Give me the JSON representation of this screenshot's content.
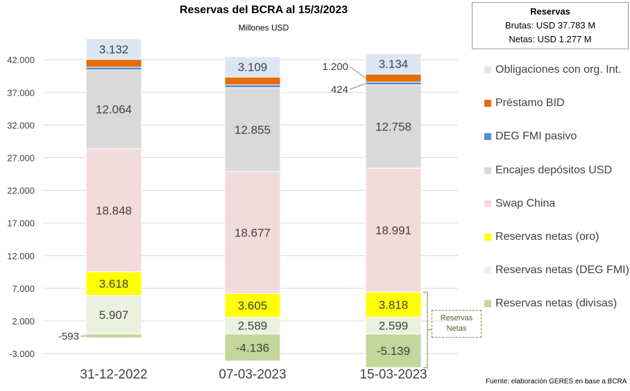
{
  "chart_data": {
    "type": "bar",
    "stacked": true,
    "title": "Reservas del BCRA al 15/3/2023",
    "subtitle": "Millones USD",
    "categories": [
      "31-12-2022",
      "07-03-2023",
      "15-03-2023"
    ],
    "ylim": [
      -3000,
      45000
    ],
    "yticks": [
      "42.000",
      "37.000",
      "32.000",
      "27.000",
      "22.000",
      "17.000",
      "12.000",
      "7.000",
      "2.000",
      "-3.000"
    ],
    "ytick_values": [
      42000,
      37000,
      32000,
      27000,
      22000,
      17000,
      12000,
      7000,
      2000,
      -3000
    ],
    "grid": true,
    "legend_position": "right",
    "series": [
      {
        "name": "Reservas netas (divisas)",
        "color": "#c3d69b",
        "values": [
          -593,
          -4136,
          -5139
        ],
        "labels": [
          "-593",
          "-4.136",
          "-5.139"
        ]
      },
      {
        "name": "Reservas netas (DEG FMI)",
        "color": "#ebf1de",
        "values": [
          5907,
          2589,
          2599
        ],
        "labels": [
          "5.907",
          "2.589",
          "2.599"
        ]
      },
      {
        "name": "Reservas netas (oro)",
        "color": "#ffff00",
        "values": [
          3618,
          3605,
          3818
        ],
        "labels": [
          "3.618",
          "3.605",
          "3.818"
        ]
      },
      {
        "name": "Swap China",
        "color": "#f2dcdb",
        "values": [
          18848,
          18677,
          18991
        ],
        "labels": [
          "18.848",
          "18.677",
          "18.991"
        ]
      },
      {
        "name": "Encajes depósitos USD",
        "color": "#d9d9d9",
        "values": [
          12064,
          12855,
          12758
        ],
        "labels": [
          "12.064",
          "12.855",
          "12.758"
        ]
      },
      {
        "name": "DEG FMI pasivo",
        "color": "#558ed5",
        "values": [
          424,
          424,
          424
        ],
        "labels": [
          "",
          "",
          "424"
        ]
      },
      {
        "name": "Préstamo BID",
        "color": "#e46c0a",
        "values": [
          1200,
          1200,
          1200
        ],
        "labels": [
          "",
          "",
          "1.200"
        ]
      },
      {
        "name": "Obligaciones con org. Int.",
        "color": "#dce6f2",
        "values": [
          3132,
          3109,
          3134
        ],
        "labels": [
          "3.132",
          "3.109",
          "3.134"
        ]
      }
    ]
  },
  "summary_box": {
    "title": "Reservas",
    "gross": "Brutas: USD 37.783 M",
    "net": "Netas: USD 1.277 M"
  },
  "bracket_label": {
    "line1": "Reservas",
    "line2": "Netas"
  },
  "source": "Fuente: elaboración GERES en base a BCRA"
}
